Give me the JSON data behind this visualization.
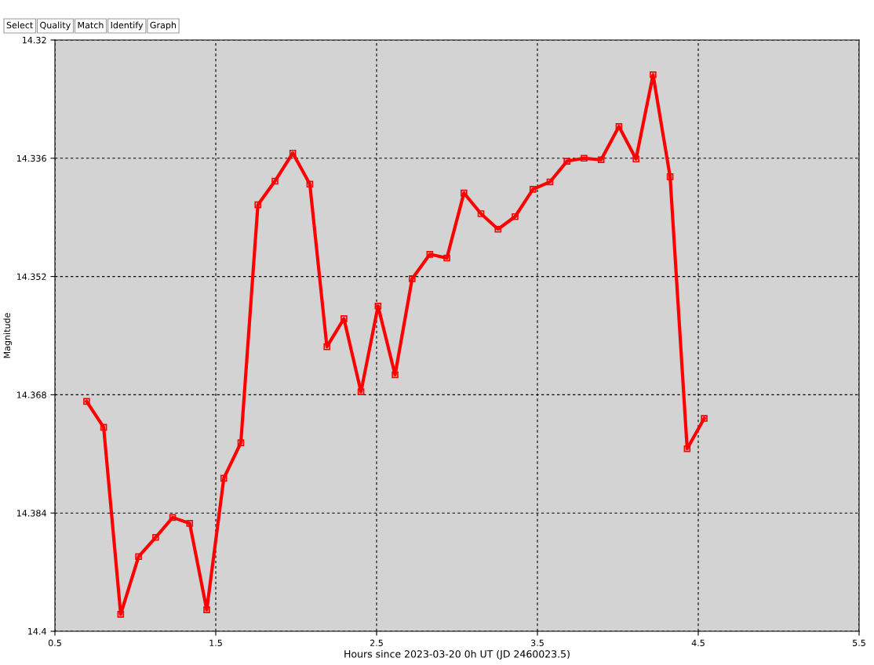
{
  "chart_data": {
    "type": "line",
    "xlabel": "Hours since 2023-03-20 0h UT (JD 2460023.5)",
    "ylabel": "Magnitude",
    "annotations": [
      "Select",
      "Quality",
      "Match",
      "Identify",
      "Graph"
    ],
    "xlim": [
      0.5,
      5.5
    ],
    "xticks": [
      0.5,
      1.5,
      2.5,
      3.5,
      4.5,
      5.5
    ],
    "ylim": [
      14.4,
      14.32
    ],
    "yticks": [
      14.32,
      14.336,
      14.352,
      14.368,
      14.384,
      14.4
    ],
    "grid": true,
    "marker": "square",
    "line_style": "solid",
    "series": [
      {
        "color": "#ff0000",
        "x": [
          0.697,
          0.803,
          0.909,
          1.02,
          1.126,
          1.232,
          1.338,
          1.444,
          1.55,
          1.656,
          1.762,
          1.868,
          1.979,
          2.085,
          2.191,
          2.297,
          2.403,
          2.509,
          2.615,
          2.721,
          2.831,
          2.937,
          3.043,
          3.149,
          3.255,
          3.361,
          3.472,
          3.578,
          3.684,
          3.79,
          3.896,
          4.007,
          4.113,
          4.219,
          4.325,
          4.431,
          4.537
        ],
        "values": [
          14.3689,
          14.3724,
          14.3977,
          14.3899,
          14.3873,
          14.3846,
          14.3854,
          14.3971,
          14.3793,
          14.3745,
          14.3423,
          14.3391,
          14.3353,
          14.3395,
          14.3615,
          14.3577,
          14.3676,
          14.356,
          14.3653,
          14.3523,
          14.349,
          14.3495,
          14.3407,
          14.3435,
          14.3456,
          14.3439,
          14.3402,
          14.3392,
          14.3364,
          14.336,
          14.3362,
          14.3317,
          14.3361,
          14.3247,
          14.3385,
          14.3753,
          14.3712
        ]
      }
    ]
  }
}
